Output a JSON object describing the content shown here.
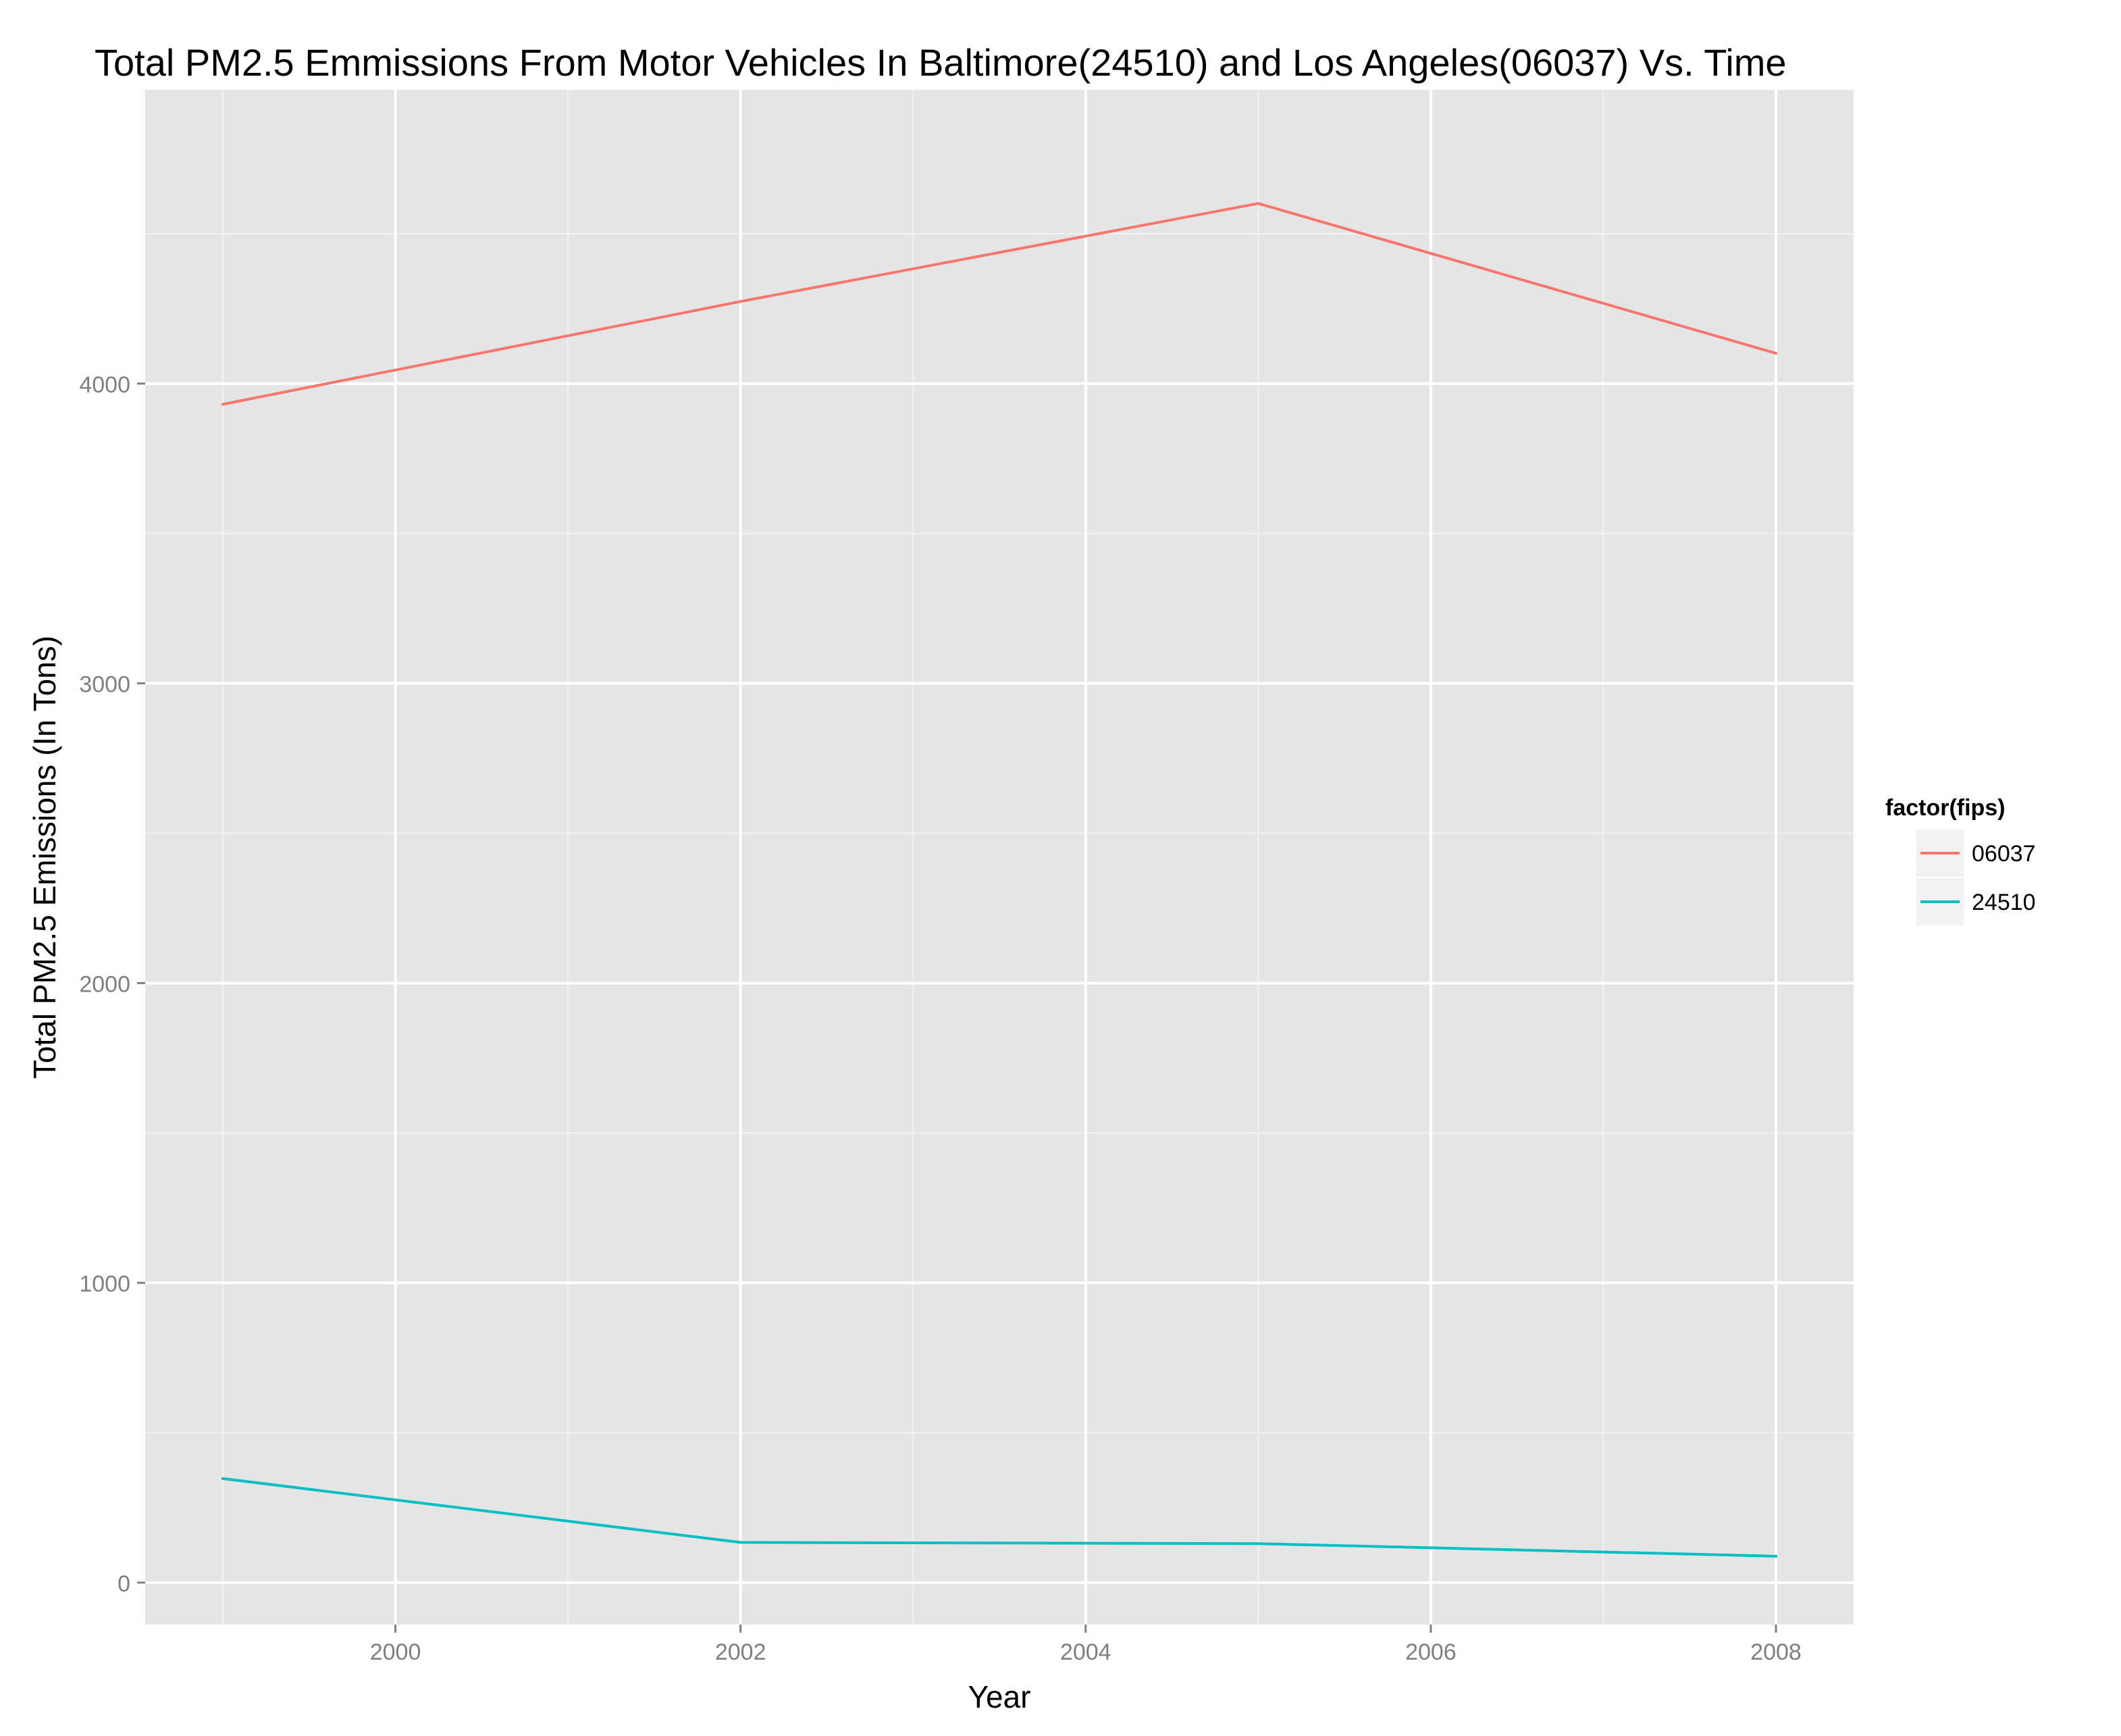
{
  "chart_data": {
    "type": "line",
    "title": "Total PM2.5 Emmissions From Motor Vehicles In Baltimore(24510) and Los Angeles(06037) Vs. Time",
    "xlabel": "Year",
    "ylabel": "Total PM2.5 Emissions (In Tons)",
    "x": [
      1999,
      2002,
      2005,
      2008
    ],
    "xlim": [
      1998.55,
      2008.45
    ],
    "ylim": [
      -140,
      4980
    ],
    "x_ticks": [
      2000,
      2002,
      2004,
      2006,
      2008
    ],
    "x_tick_labels": [
      "2000",
      "2002",
      "2004",
      "2006",
      "2008"
    ],
    "y_ticks": [
      0,
      1000,
      2000,
      3000,
      4000
    ],
    "y_tick_labels": [
      "0",
      "1000",
      "2000",
      "3000",
      "4000"
    ],
    "grid": true,
    "legend": {
      "title": "factor(fips)",
      "position": "right"
    },
    "series": [
      {
        "name": "06037",
        "color": "#F8766D",
        "values": [
          3931,
          4274,
          4601,
          4101
        ]
      },
      {
        "name": "24510",
        "color": "#00BFC4",
        "values": [
          347,
          134,
          130,
          88
        ]
      }
    ]
  }
}
